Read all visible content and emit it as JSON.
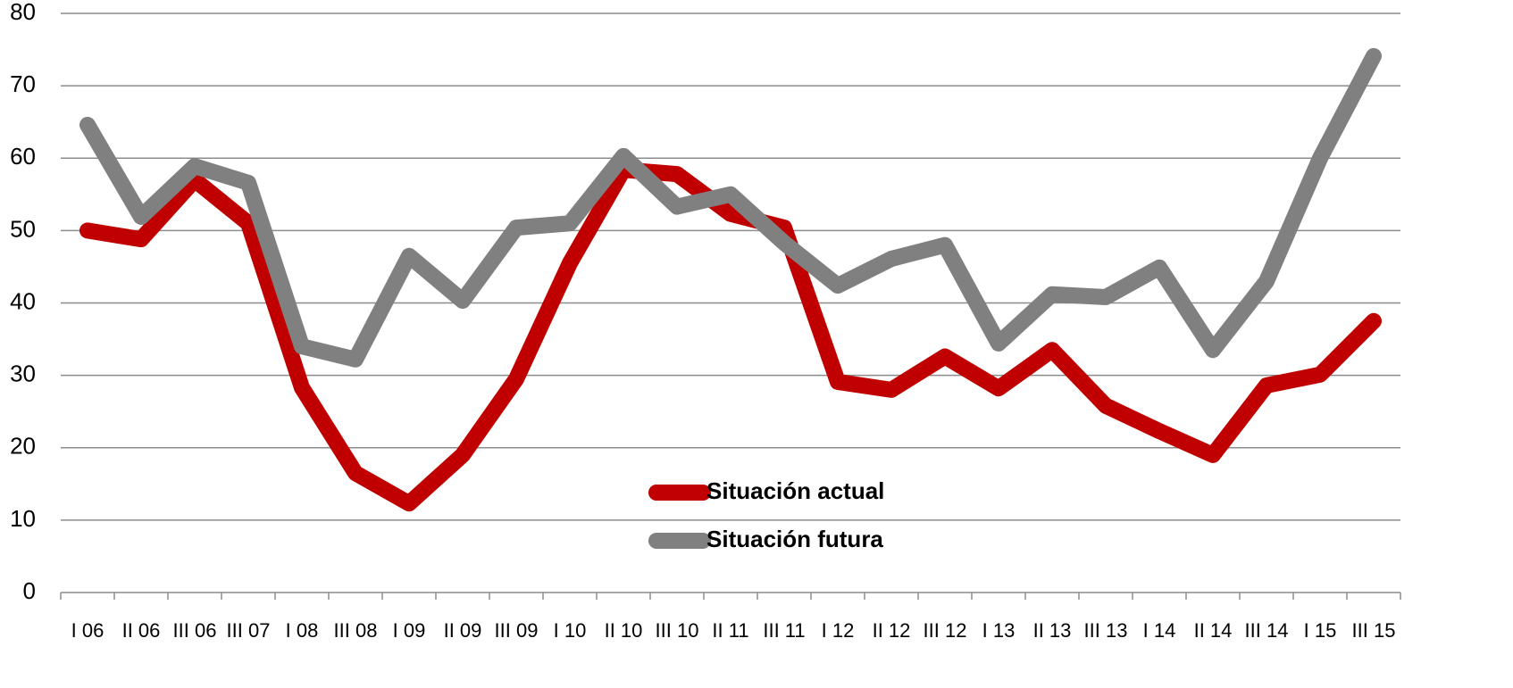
{
  "chart_data": {
    "type": "line",
    "categories": [
      "I 06",
      "II 06",
      "III 06",
      "III 07",
      "I 08",
      "III 08",
      "I 09",
      "II 09",
      "III 09",
      "I 10",
      "II 10",
      "III 10",
      "II 11",
      "III 11",
      "I 12",
      "II 12",
      "III 12",
      "I 13",
      "II 13",
      "III 13",
      "I 14",
      "II 14",
      "III 14",
      "I 15",
      "III 15"
    ],
    "series": [
      {
        "name": "Situación actual",
        "color": "#c00000",
        "values": [
          50,
          48.8,
          57,
          51,
          28.3,
          16.5,
          12.3,
          19,
          29.5,
          45.5,
          58.4,
          57.8,
          52.3,
          50.4,
          29.1,
          28,
          32.6,
          28.2,
          33.5,
          25.8,
          22.3,
          19,
          28.6,
          30.1,
          37.5
        ]
      },
      {
        "name": "Situación futura",
        "color": "#808080",
        "values": [
          64.6,
          51.9,
          58.9,
          56.6,
          34,
          32.2,
          46.5,
          40.3,
          50.4,
          51,
          60.3,
          53.3,
          55,
          48.3,
          42.4,
          46.1,
          48,
          34.4,
          41.2,
          40.8,
          44.9,
          33.5,
          43,
          60,
          74.1
        ]
      }
    ],
    "ylim": [
      0,
      80
    ],
    "yticks": [
      0,
      10,
      20,
      30,
      40,
      50,
      60,
      70,
      80
    ],
    "grid": true,
    "legend": "center"
  }
}
